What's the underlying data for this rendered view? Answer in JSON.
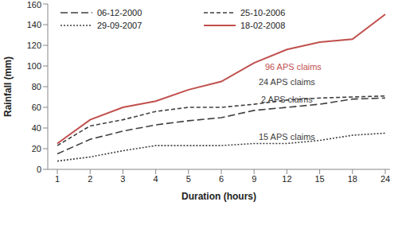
{
  "chart_data": {
    "type": "line",
    "x_label": "Duration (hours)",
    "y_label": "Rainfall (mm)",
    "categories": [
      1,
      2,
      3,
      4,
      5,
      6,
      9,
      12,
      15,
      18,
      24
    ],
    "ylim": [
      0,
      160
    ],
    "yticks": [
      0,
      20,
      40,
      60,
      80,
      100,
      120,
      140,
      160
    ],
    "legend": "upper left",
    "grid": false,
    "series": [
      {
        "name": "06-12-2000",
        "color": "#404040",
        "line_style": "long_dash",
        "annotation": "2 APS claims",
        "values": [
          15,
          29,
          37,
          43,
          47,
          50,
          57,
          60,
          63,
          68,
          69
        ]
      },
      {
        "name": "25-10-2006",
        "color": "#404040",
        "line_style": "dashed",
        "annotation": "24 APS claims",
        "values": [
          23,
          42,
          48,
          56,
          60,
          60,
          63,
          67,
          69,
          70,
          71
        ]
      },
      {
        "name": "29-09-2007",
        "color": "#404040",
        "line_style": "dotted",
        "annotation": "15 APS claims",
        "values": [
          8,
          12,
          18,
          23,
          23,
          23,
          25,
          25,
          28,
          33,
          35
        ]
      },
      {
        "name": "18-02-2008",
        "color": "#c0504d",
        "line_style": "solid",
        "annotation": "96 APS claims",
        "values": [
          25,
          48,
          60,
          66,
          77,
          85,
          103,
          116,
          123,
          126,
          150
        ]
      }
    ]
  }
}
